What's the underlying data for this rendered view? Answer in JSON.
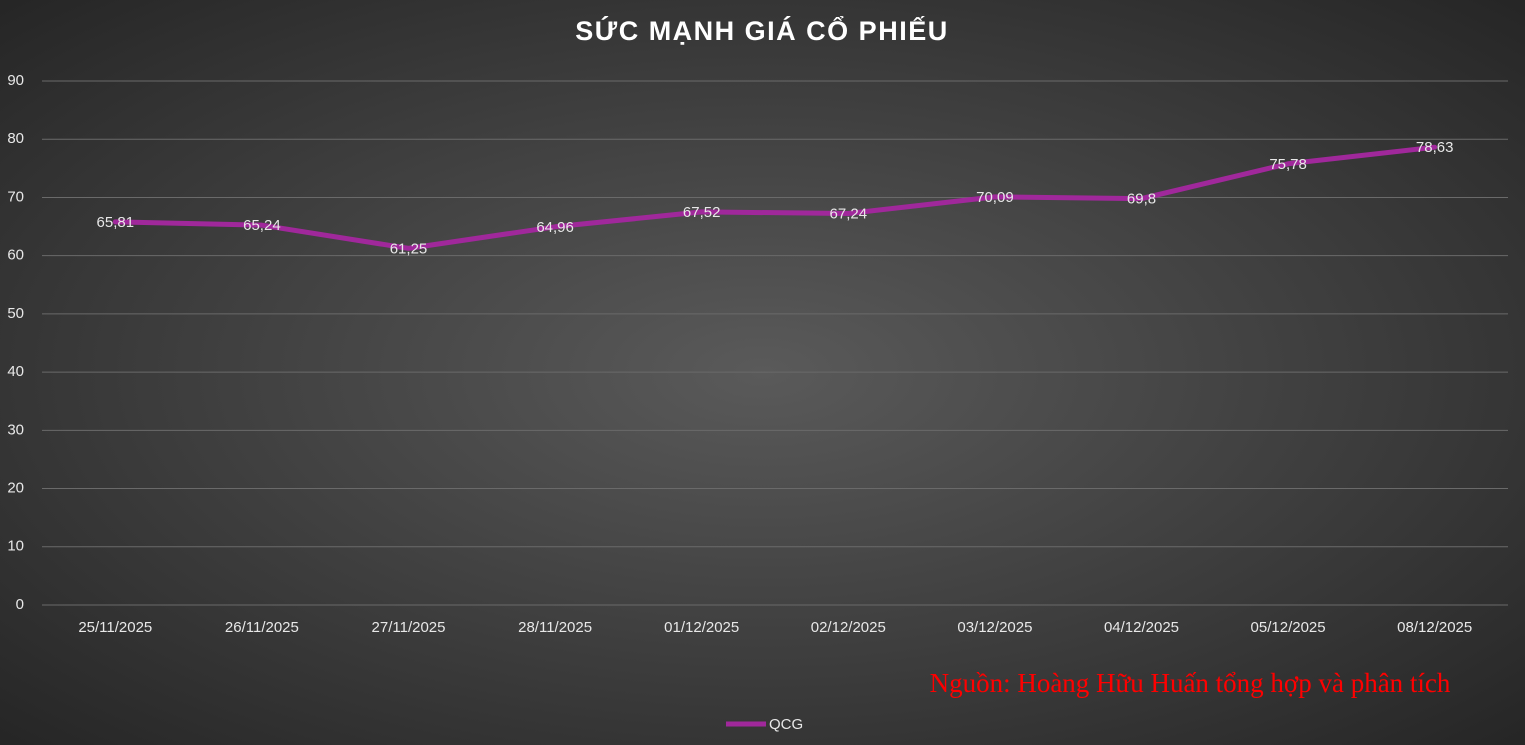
{
  "chart_data": {
    "type": "line",
    "title": "SỨC MẠNH GIÁ CỔ PHIẾU",
    "categories": [
      "25/11/2025",
      "26/11/2025",
      "27/11/2025",
      "28/11/2025",
      "01/12/2025",
      "02/12/2025",
      "03/12/2025",
      "04/12/2025",
      "05/12/2025",
      "08/12/2025"
    ],
    "series": [
      {
        "name": "QCG",
        "color": "#a0289b",
        "values": [
          65.81,
          65.24,
          61.25,
          64.96,
          67.52,
          67.24,
          70.09,
          69.8,
          75.78,
          78.63
        ],
        "value_labels": [
          "65,81",
          "65,24",
          "61,25",
          "64,96",
          "67,52",
          "67,24",
          "70,09",
          "69,8",
          "75,78",
          "78,63"
        ]
      }
    ],
    "ylim": [
      0,
      90
    ],
    "yticks": [
      0,
      10,
      20,
      30,
      40,
      50,
      60,
      70,
      80,
      90
    ],
    "grid": true,
    "legend": "bottom",
    "annotation": "Nguồn: Hoàng Hữu Huấn tổng hợp và phân tích"
  }
}
